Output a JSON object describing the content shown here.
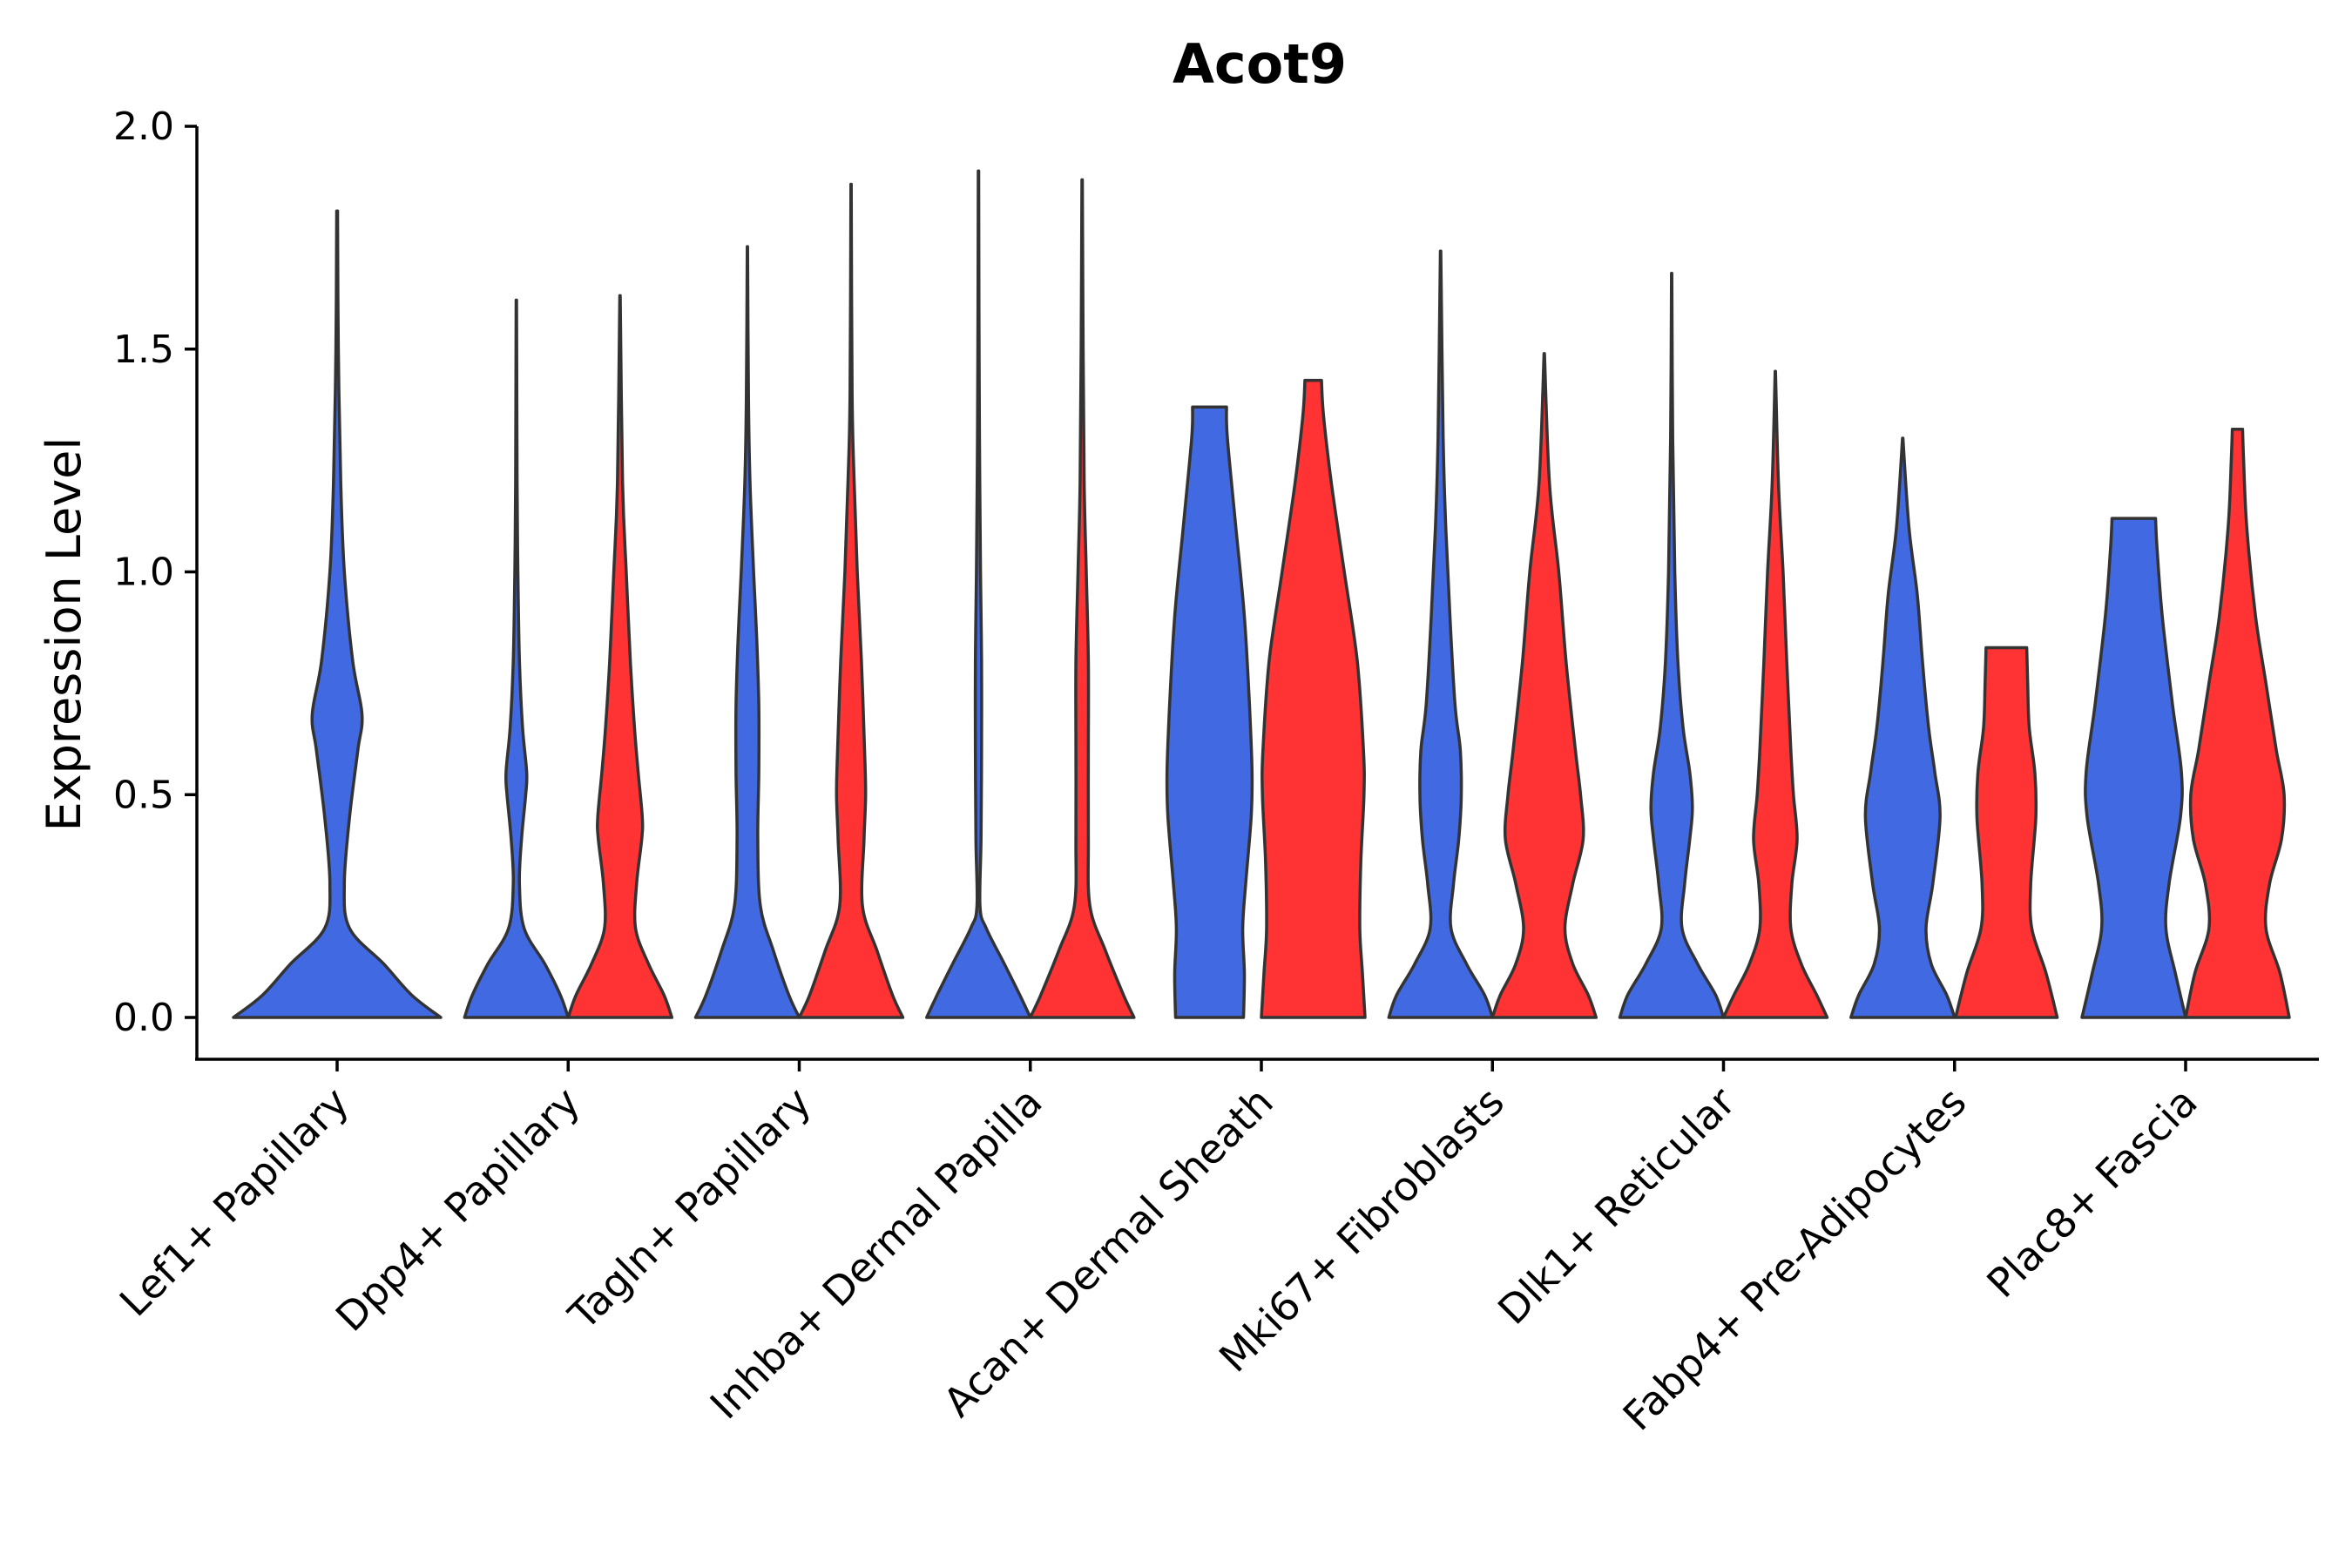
{
  "chart_data": {
    "type": "violin",
    "title": "Acot9",
    "xlabel": "",
    "ylabel": "Expression Level",
    "ylim": [
      -0.1,
      2.0
    ],
    "yticks": [
      "0.0",
      "0.5",
      "1.0",
      "1.5",
      "2.0"
    ],
    "series_colors": [
      "#4169E1",
      "#FF3333"
    ],
    "categories": [
      {
        "label": "Lef1+ Papillary",
        "violins": [
          {
            "series": 0,
            "max": 1.81,
            "width": 1.0,
            "profile": [
              [
                0.0,
                1.0
              ],
              [
                0.05,
                0.72
              ],
              [
                0.12,
                0.45
              ],
              [
                0.2,
                0.12
              ],
              [
                0.3,
                0.07
              ],
              [
                0.45,
                0.12
              ],
              [
                0.6,
                0.2
              ],
              [
                0.68,
                0.24
              ],
              [
                0.8,
                0.15
              ],
              [
                1.0,
                0.07
              ],
              [
                1.2,
                0.035
              ],
              [
                1.5,
                0.012
              ],
              [
                1.81,
                0.004
              ]
            ]
          }
        ]
      },
      {
        "label": "Dpp4+ Papillary",
        "violins": [
          {
            "series": 0,
            "max": 1.61,
            "width": 1.0,
            "profile": [
              [
                0.0,
                1.0
              ],
              [
                0.05,
                0.85
              ],
              [
                0.12,
                0.55
              ],
              [
                0.2,
                0.15
              ],
              [
                0.3,
                0.06
              ],
              [
                0.4,
                0.1
              ],
              [
                0.5,
                0.18
              ],
              [
                0.55,
                0.2
              ],
              [
                0.65,
                0.12
              ],
              [
                0.8,
                0.06
              ],
              [
                1.0,
                0.03
              ],
              [
                1.2,
                0.015
              ],
              [
                1.61,
                0.004
              ]
            ]
          },
          {
            "series": 1,
            "max": 1.62,
            "width": 1.0,
            "profile": [
              [
                0.0,
                1.0
              ],
              [
                0.05,
                0.85
              ],
              [
                0.12,
                0.55
              ],
              [
                0.2,
                0.3
              ],
              [
                0.3,
                0.32
              ],
              [
                0.4,
                0.42
              ],
              [
                0.45,
                0.43
              ],
              [
                0.55,
                0.35
              ],
              [
                0.65,
                0.28
              ],
              [
                0.8,
                0.2
              ],
              [
                1.0,
                0.12
              ],
              [
                1.2,
                0.05
              ],
              [
                1.62,
                0.004
              ]
            ]
          }
        ]
      },
      {
        "label": "Tagln+ Papillary",
        "violins": [
          {
            "series": 0,
            "max": 1.73,
            "width": 1.0,
            "profile": [
              [
                0.0,
                1.0
              ],
              [
                0.05,
                0.8
              ],
              [
                0.15,
                0.5
              ],
              [
                0.25,
                0.25
              ],
              [
                0.4,
                0.2
              ],
              [
                0.55,
                0.22
              ],
              [
                0.7,
                0.22
              ],
              [
                0.85,
                0.18
              ],
              [
                1.0,
                0.12
              ],
              [
                1.2,
                0.05
              ],
              [
                1.4,
                0.02
              ],
              [
                1.73,
                0.004
              ]
            ]
          },
          {
            "series": 1,
            "max": 1.87,
            "width": 1.0,
            "profile": [
              [
                0.0,
                1.0
              ],
              [
                0.05,
                0.8
              ],
              [
                0.15,
                0.5
              ],
              [
                0.25,
                0.22
              ],
              [
                0.4,
                0.25
              ],
              [
                0.5,
                0.28
              ],
              [
                0.6,
                0.26
              ],
              [
                0.8,
                0.2
              ],
              [
                1.0,
                0.12
              ],
              [
                1.2,
                0.06
              ],
              [
                1.4,
                0.02
              ],
              [
                1.87,
                0.004
              ]
            ]
          }
        ]
      },
      {
        "label": "Inhba+ Dermal Papilla",
        "violins": [
          {
            "series": 0,
            "max": 1.9,
            "width": 1.0,
            "profile": [
              [
                0.0,
                1.0
              ],
              [
                0.05,
                0.8
              ],
              [
                0.12,
                0.5
              ],
              [
                0.2,
                0.15
              ],
              [
                0.25,
                0.03
              ],
              [
                0.4,
                0.05
              ],
              [
                0.6,
                0.06
              ],
              [
                0.8,
                0.06
              ],
              [
                1.0,
                0.04
              ],
              [
                1.3,
                0.02
              ],
              [
                1.6,
                0.01
              ],
              [
                1.9,
                0.004
              ]
            ]
          },
          {
            "series": 1,
            "max": 1.88,
            "width": 1.0,
            "profile": [
              [
                0.0,
                1.0
              ],
              [
                0.05,
                0.8
              ],
              [
                0.15,
                0.45
              ],
              [
                0.25,
                0.15
              ],
              [
                0.4,
                0.12
              ],
              [
                0.6,
                0.12
              ],
              [
                0.8,
                0.12
              ],
              [
                1.0,
                0.08
              ],
              [
                1.2,
                0.04
              ],
              [
                1.5,
                0.02
              ],
              [
                1.88,
                0.004
              ]
            ]
          }
        ]
      },
      {
        "label": "Acan+ Dermal Sheath",
        "violins": [
          {
            "series": 0,
            "max": 1.37,
            "width": 0.82,
            "profile": [
              [
                0.0,
                0.8
              ],
              [
                0.1,
                0.82
              ],
              [
                0.2,
                0.78
              ],
              [
                0.3,
                0.85
              ],
              [
                0.45,
                0.98
              ],
              [
                0.55,
                1.0
              ],
              [
                0.7,
                0.94
              ],
              [
                0.9,
                0.82
              ],
              [
                1.1,
                0.62
              ],
              [
                1.3,
                0.42
              ],
              [
                1.37,
                0.4
              ]
            ]
          },
          {
            "series": 1,
            "max": 1.43,
            "width": 1.0,
            "profile": [
              [
                0.0,
                1.0
              ],
              [
                0.1,
                0.95
              ],
              [
                0.2,
                0.9
              ],
              [
                0.35,
                0.92
              ],
              [
                0.5,
                0.98
              ],
              [
                0.6,
                0.97
              ],
              [
                0.8,
                0.85
              ],
              [
                1.0,
                0.6
              ],
              [
                1.2,
                0.35
              ],
              [
                1.35,
                0.2
              ],
              [
                1.43,
                0.16
              ]
            ]
          }
        ]
      },
      {
        "label": "Mki67+ Fibroblasts",
        "violins": [
          {
            "series": 0,
            "max": 1.72,
            "width": 1.0,
            "profile": [
              [
                0.0,
                1.0
              ],
              [
                0.05,
                0.85
              ],
              [
                0.12,
                0.5
              ],
              [
                0.2,
                0.2
              ],
              [
                0.3,
                0.25
              ],
              [
                0.4,
                0.35
              ],
              [
                0.5,
                0.4
              ],
              [
                0.6,
                0.38
              ],
              [
                0.7,
                0.28
              ],
              [
                0.9,
                0.18
              ],
              [
                1.1,
                0.1
              ],
              [
                1.3,
                0.05
              ],
              [
                1.72,
                0.004
              ]
            ]
          },
          {
            "series": 1,
            "max": 1.49,
            "width": 1.0,
            "profile": [
              [
                0.0,
                1.0
              ],
              [
                0.05,
                0.85
              ],
              [
                0.12,
                0.55
              ],
              [
                0.2,
                0.4
              ],
              [
                0.3,
                0.55
              ],
              [
                0.4,
                0.75
              ],
              [
                0.5,
                0.7
              ],
              [
                0.6,
                0.6
              ],
              [
                0.8,
                0.42
              ],
              [
                1.0,
                0.28
              ],
              [
                1.2,
                0.1
              ],
              [
                1.49,
                0.004
              ]
            ]
          }
        ]
      },
      {
        "label": "Dlk1+ Reticular",
        "violins": [
          {
            "series": 0,
            "max": 1.67,
            "width": 1.0,
            "profile": [
              [
                0.0,
                1.0
              ],
              [
                0.05,
                0.85
              ],
              [
                0.12,
                0.5
              ],
              [
                0.2,
                0.2
              ],
              [
                0.3,
                0.25
              ],
              [
                0.4,
                0.35
              ],
              [
                0.47,
                0.4
              ],
              [
                0.55,
                0.35
              ],
              [
                0.65,
                0.22
              ],
              [
                0.8,
                0.12
              ],
              [
                1.0,
                0.06
              ],
              [
                1.3,
                0.02
              ],
              [
                1.67,
                0.004
              ]
            ]
          },
          {
            "series": 1,
            "max": 1.45,
            "width": 1.0,
            "profile": [
              [
                0.0,
                1.0
              ],
              [
                0.05,
                0.8
              ],
              [
                0.12,
                0.5
              ],
              [
                0.2,
                0.3
              ],
              [
                0.3,
                0.32
              ],
              [
                0.4,
                0.42
              ],
              [
                0.5,
                0.35
              ],
              [
                0.6,
                0.3
              ],
              [
                0.8,
                0.22
              ],
              [
                1.0,
                0.15
              ],
              [
                1.2,
                0.06
              ],
              [
                1.45,
                0.004
              ]
            ]
          }
        ]
      },
      {
        "label": "Fabp4+ Pre-Adipocytes",
        "violins": [
          {
            "series": 0,
            "max": 1.3,
            "width": 1.0,
            "profile": [
              [
                0.0,
                1.0
              ],
              [
                0.05,
                0.85
              ],
              [
                0.12,
                0.55
              ],
              [
                0.2,
                0.45
              ],
              [
                0.3,
                0.58
              ],
              [
                0.45,
                0.72
              ],
              [
                0.55,
                0.62
              ],
              [
                0.65,
                0.5
              ],
              [
                0.8,
                0.38
              ],
              [
                0.95,
                0.28
              ],
              [
                1.1,
                0.12
              ],
              [
                1.3,
                0.004
              ]
            ]
          },
          {
            "series": 1,
            "max": 0.83,
            "width": 0.98,
            "profile": [
              [
                0.0,
                1.0
              ],
              [
                0.1,
                0.78
              ],
              [
                0.2,
                0.5
              ],
              [
                0.3,
                0.48
              ],
              [
                0.45,
                0.58
              ],
              [
                0.55,
                0.56
              ],
              [
                0.65,
                0.45
              ],
              [
                0.75,
                0.42
              ],
              [
                0.83,
                0.4
              ]
            ]
          }
        ]
      },
      {
        "label": "Plac8+ Fascia",
        "violins": [
          {
            "series": 0,
            "max": 1.12,
            "width": 1.0,
            "profile": [
              [
                0.0,
                1.0
              ],
              [
                0.1,
                0.8
              ],
              [
                0.2,
                0.62
              ],
              [
                0.3,
                0.68
              ],
              [
                0.45,
                0.9
              ],
              [
                0.55,
                0.92
              ],
              [
                0.7,
                0.75
              ],
              [
                0.9,
                0.55
              ],
              [
                1.05,
                0.45
              ],
              [
                1.12,
                0.42
              ]
            ]
          },
          {
            "series": 1,
            "max": 1.32,
            "width": 1.0,
            "profile": [
              [
                0.0,
                1.0
              ],
              [
                0.1,
                0.82
              ],
              [
                0.2,
                0.55
              ],
              [
                0.3,
                0.62
              ],
              [
                0.4,
                0.85
              ],
              [
                0.5,
                0.9
              ],
              [
                0.6,
                0.75
              ],
              [
                0.75,
                0.55
              ],
              [
                0.9,
                0.35
              ],
              [
                1.1,
                0.18
              ],
              [
                1.25,
                0.12
              ],
              [
                1.32,
                0.1
              ]
            ]
          }
        ]
      }
    ]
  }
}
